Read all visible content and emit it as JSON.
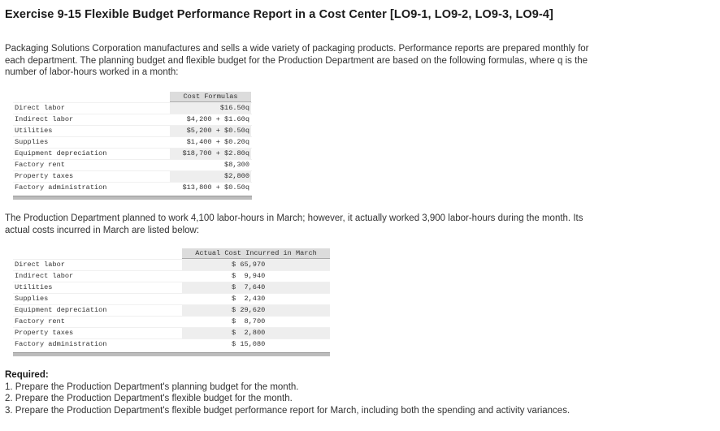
{
  "title": "Exercise 9-15 Flexible Budget Performance Report in a Cost Center [LO9-1, LO9-2, LO9-3, LO9-4]",
  "intro": "Packaging Solutions Corporation manufactures and sells a wide variety of packaging products. Performance reports are prepared monthly for each department. The planning budget and flexible budget for the Production Department are based on the following formulas, where q is the number of labor-hours worked in a month:",
  "cost_formulas": {
    "header": "Cost Formulas",
    "rows": [
      {
        "label": "Direct labor",
        "value": "$16.50q"
      },
      {
        "label": "Indirect labor",
        "value": "$4,200 + $1.60q"
      },
      {
        "label": "Utilities",
        "value": "$5,200 + $0.50q"
      },
      {
        "label": "Supplies",
        "value": "$1,400 + $0.20q"
      },
      {
        "label": "Equipment depreciation",
        "value": "$18,700 + $2.80q"
      },
      {
        "label": "Factory rent",
        "value": "$8,300"
      },
      {
        "label": "Property taxes",
        "value": "$2,800"
      },
      {
        "label": "Factory administration",
        "value": "$13,800 + $0.50q"
      }
    ]
  },
  "middle_text": "The Production Department planned to work 4,100 labor-hours in March; however, it actually worked 3,900 labor-hours during the month. Its actual costs incurred in March are listed below:",
  "actual_costs": {
    "header": "Actual Cost Incurred in March",
    "rows": [
      {
        "label": "Direct labor",
        "value": "$ 65,970"
      },
      {
        "label": "Indirect labor",
        "value": "$  9,940"
      },
      {
        "label": "Utilities",
        "value": "$  7,640"
      },
      {
        "label": "Supplies",
        "value": "$  2,430"
      },
      {
        "label": "Equipment depreciation",
        "value": "$ 29,620"
      },
      {
        "label": "Factory rent",
        "value": "$  8,700"
      },
      {
        "label": "Property taxes",
        "value": "$  2,800"
      },
      {
        "label": "Factory administration",
        "value": "$ 15,080"
      }
    ]
  },
  "required": {
    "heading": "Required:",
    "items": [
      "1. Prepare the Production Department's planning budget for the month.",
      "2. Prepare the Production Department's flexible budget for the month.",
      "3. Prepare the Production Department's flexible budget performance report for March, including both the spending and activity variances."
    ]
  }
}
